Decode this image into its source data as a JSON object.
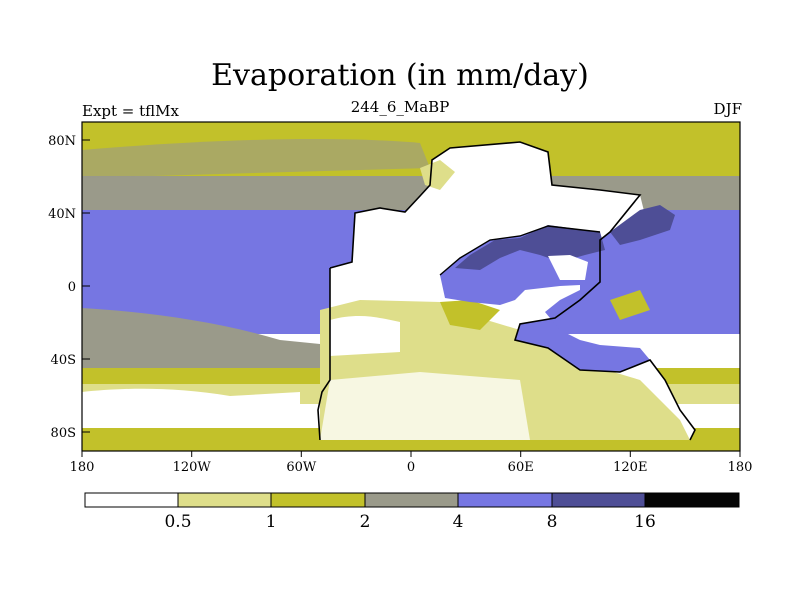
{
  "title": "Evaporation (in mm/day)",
  "left_label": "Expt = tflMx",
  "center_label": "244_6_MaBP",
  "right_label": "DJF",
  "lat_ticks": [
    "80N",
    "40N",
    "0",
    "40S",
    "80S"
  ],
  "lon_ticks": [
    "180",
    "120W",
    "60W",
    "0",
    "60E",
    "120E",
    "180"
  ],
  "colorbar": {
    "labels": [
      "0.5",
      "1",
      "2",
      "4",
      "8",
      "16"
    ],
    "colors": [
      "#ffffff",
      "#dede8a",
      "#c2c12a",
      "#9a9a8a",
      "#7676e2",
      "#4e4e96",
      "#050505"
    ]
  },
  "palette": {
    "lt05": "#ffffff",
    "c05_1": "#dede8a",
    "c1_2": "#c2c12a",
    "c2_4": "#9a9a8a",
    "c4_8": "#7676e2",
    "c8_16": "#4e4e96",
    "gt16": "#050505"
  }
}
